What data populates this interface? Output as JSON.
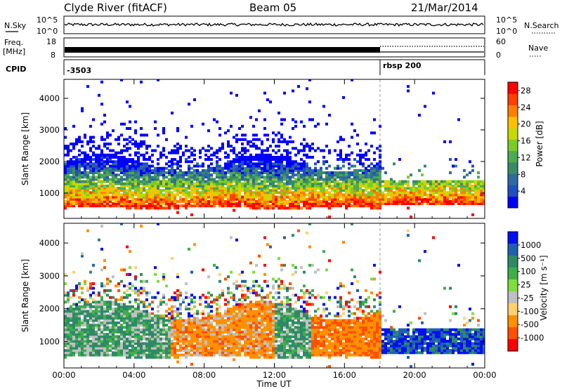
{
  "header": {
    "station": "Clyde River (fitACF)",
    "beam": "Beam 05",
    "date": "21/Mar/2014"
  },
  "strips": {
    "nsky_label": "N.Sky",
    "nsky_ticks": [
      "10^5",
      "10^0"
    ],
    "nsearch_label": "N.Search",
    "nsearch_ticks": [
      "10^5",
      "10^0"
    ],
    "freq_label": "Freq.",
    "freq_unit": "[MHz]",
    "freq_ticks": [
      "18",
      "8"
    ],
    "nave_label": "Nave",
    "nave_ticks": [
      "60",
      "0"
    ],
    "cpid_label": "CPID",
    "cpid_values": [
      "-3503",
      "rbsp 200"
    ]
  },
  "chart_data": [
    {
      "type": "heatmap",
      "panel": "power",
      "ylabel": "Slant Range [km]",
      "xlabel": "Time UT",
      "x_ticks": [
        "00:00",
        "04:00",
        "08:00",
        "12:00",
        "16:00",
        "20:00",
        "00:00"
      ],
      "x_range_hours": [
        0,
        24
      ],
      "y_ticks": [
        1000,
        2000,
        3000,
        4000
      ],
      "ylim": [
        200,
        4600
      ],
      "colorbar": {
        "label": "Power [dB]",
        "ticks": [
          4,
          8,
          12,
          16,
          20,
          24,
          28
        ],
        "range": [
          0,
          30
        ]
      },
      "mode_change_hour": 18
    },
    {
      "type": "heatmap",
      "panel": "velocity",
      "ylabel": "Slant Range [km]",
      "xlabel": "Time UT",
      "x_ticks": [
        "00:00",
        "04:00",
        "08:00",
        "12:00",
        "16:00",
        "20:00",
        "00:00"
      ],
      "y_ticks": [
        1000,
        2000,
        3000,
        4000
      ],
      "ylim": [
        200,
        4600
      ],
      "colorbar": {
        "label": "Velocity [m s⁻¹]",
        "ticks": [
          "1000",
          "500",
          "100",
          "25",
          "-25",
          "-100",
          "-500",
          "-1000"
        ]
      }
    }
  ],
  "colors": {
    "power_scale": [
      "#0000ff",
      "#2050c0",
      "#2e6aa0",
      "#3a8a6a",
      "#4caa50",
      "#7ccc28",
      "#c8d800",
      "#ffc000",
      "#ff8000",
      "#ff4000",
      "#ff0000"
    ],
    "velocity_scale": [
      "#ff0000",
      "#ff5000",
      "#ff9000",
      "#ffd070",
      "#c0c0c0",
      "#80dd40",
      "#3fae4a",
      "#2e8a66",
      "#2060b0",
      "#0010ee"
    ]
  }
}
